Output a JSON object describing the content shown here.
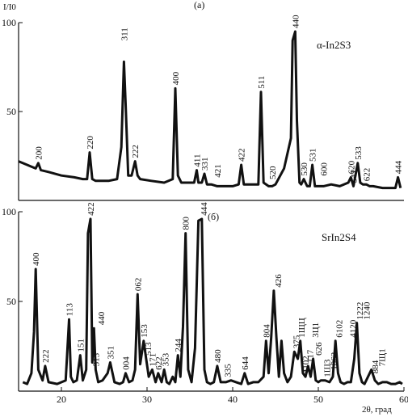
{
  "figure": {
    "y_axis_label": "I/I0",
    "x_axis_label": "2θ, град"
  },
  "chart_data": [
    {
      "type": "line",
      "panel_label": "(a)",
      "compound": "α-In2S3",
      "xlim": [
        15,
        60
      ],
      "ylim": [
        0,
        100
      ],
      "y_ticks": [
        50,
        100
      ],
      "series": [
        {
          "x": [
            15.0,
            16.0,
            16.5,
            17.0,
            17.3,
            17.6,
            18.5,
            20.0,
            21.5,
            22.5,
            23.0,
            23.3,
            23.6,
            24.0,
            25.5,
            26.5,
            27.0,
            27.3,
            27.5,
            27.8,
            28.2,
            28.6,
            28.9,
            29.2,
            30.5,
            32.0,
            33.0,
            33.3,
            33.6,
            34.0,
            35.0,
            35.5,
            35.8,
            36.0,
            36.4,
            36.7,
            37.0,
            37.5,
            38.2,
            39.0,
            40.0,
            40.7,
            41.0,
            41.3,
            42.5,
            43.0,
            43.3,
            43.6,
            44.2,
            44.6,
            45.0,
            46.0,
            46.8,
            47.0,
            47.3,
            47.5,
            47.8,
            48.0,
            48.3,
            48.7,
            49.0,
            49.3,
            49.6,
            50.0,
            50.6,
            51.5,
            52.5,
            53.5,
            53.8,
            54.1,
            54.6,
            54.9,
            55.2,
            55.6,
            56.0,
            56.4,
            57.5,
            58.5,
            59.0,
            59.3,
            59.6
          ],
          "y": [
            22,
            20,
            19,
            18,
            21,
            17,
            16,
            14,
            13,
            12,
            12,
            27,
            12,
            11,
            11,
            12,
            30,
            78,
            54,
            14,
            14,
            22,
            14,
            12,
            11,
            10,
            12,
            63,
            14,
            10,
            10,
            10,
            17,
            10,
            10,
            15,
            9,
            9,
            8,
            8,
            8,
            9,
            20,
            9,
            9,
            9,
            61,
            10,
            8,
            8,
            9,
            18,
            35,
            90,
            95,
            45,
            10,
            9,
            12,
            8,
            8,
            20,
            8,
            8,
            8,
            9,
            8,
            10,
            13,
            8,
            21,
            10,
            9,
            9,
            8,
            8,
            7,
            7,
            7,
            13,
            7
          ]
        }
      ],
      "annotations": [
        {
          "x": 17.3,
          "y": 21,
          "text": "200"
        },
        {
          "x": 23.3,
          "y": 27,
          "text": "220"
        },
        {
          "x": 27.3,
          "y": 88,
          "text": "311"
        },
        {
          "x": 28.6,
          "y": 22,
          "text": "222"
        },
        {
          "x": 33.3,
          "y": 63,
          "text": "400"
        },
        {
          "x": 35.8,
          "y": 17,
          "text": "411"
        },
        {
          "x": 36.7,
          "y": 15,
          "text": "331"
        },
        {
          "x": 38.2,
          "y": 11,
          "text": "421"
        },
        {
          "x": 41.0,
          "y": 20,
          "text": "422"
        },
        {
          "x": 43.3,
          "y": 61,
          "text": "511"
        },
        {
          "x": 44.6,
          "y": 10,
          "text": "520"
        },
        {
          "x": 47.3,
          "y": 95,
          "text": "440"
        },
        {
          "x": 48.3,
          "y": 12,
          "text": "530"
        },
        {
          "x": 49.3,
          "y": 20,
          "text": "531"
        },
        {
          "x": 50.6,
          "y": 12,
          "text": "600"
        },
        {
          "x": 53.8,
          "y": 13,
          "text": "620"
        },
        {
          "x": 54.1,
          "y": 8,
          "text": "541"
        },
        {
          "x": 54.6,
          "y": 21,
          "text": "533"
        },
        {
          "x": 55.6,
          "y": 9,
          "text": "622"
        },
        {
          "x": 59.3,
          "y": 13,
          "text": "444"
        }
      ]
    },
    {
      "type": "line",
      "panel_label": "(б)",
      "compound": "SrIn2S4",
      "xlim": [
        15,
        60
      ],
      "ylim": [
        0,
        100
      ],
      "x_ticks": [
        20,
        30,
        40,
        50,
        60
      ],
      "y_ticks": [
        50,
        100
      ],
      "series": [
        {
          "x": [
            15.5,
            16.0,
            16.5,
            16.8,
            17.0,
            17.3,
            17.8,
            18.1,
            18.5,
            19.5,
            20.5,
            20.9,
            21.1,
            21.4,
            21.8,
            22.2,
            22.5,
            22.9,
            23.1,
            23.4,
            23.6,
            23.8,
            24.0,
            24.3,
            24.8,
            25.4,
            25.7,
            26.2,
            26.8,
            27.2,
            27.5,
            27.9,
            28.3,
            28.6,
            28.9,
            29.2,
            29.6,
            29.9,
            30.2,
            30.6,
            31.0,
            31.3,
            31.7,
            32.0,
            32.3,
            32.6,
            33.0,
            33.3,
            33.6,
            33.9,
            34.2,
            34.5,
            34.8,
            35.2,
            35.6,
            36.0,
            36.4,
            36.7,
            37.0,
            37.4,
            37.8,
            38.2,
            38.6,
            39.2,
            39.8,
            40.4,
            41.0,
            41.4,
            41.8,
            42.4,
            43.0,
            43.6,
            43.9,
            44.2,
            44.5,
            44.8,
            45.1,
            45.4,
            45.7,
            46.0,
            46.4,
            46.8,
            47.2,
            47.6,
            47.9,
            48.2,
            48.5,
            48.8,
            49.1,
            49.4,
            49.7,
            50.0,
            50.3,
            50.8,
            51.3,
            51.7,
            52.0,
            52.3,
            52.6,
            53.0,
            53.4,
            53.8,
            54.2,
            54.5,
            54.8,
            55.1,
            55.4,
            55.8,
            56.2,
            56.6,
            57.0,
            57.5,
            58.0,
            58.5,
            59.0,
            59.5,
            59.8
          ],
          "y": [
            5,
            4,
            10,
            33,
            68,
            12,
            6,
            14,
            5,
            4,
            6,
            40,
            8,
            5,
            6,
            20,
            6,
            12,
            88,
            96,
            16,
            35,
            12,
            5,
            6,
            10,
            16,
            5,
            4,
            5,
            10,
            5,
            6,
            12,
            54,
            15,
            28,
            18,
            8,
            12,
            5,
            10,
            5,
            12,
            5,
            4,
            8,
            5,
            20,
            8,
            36,
            88,
            12,
            5,
            24,
            95,
            96,
            12,
            5,
            4,
            5,
            14,
            5,
            5,
            6,
            5,
            4,
            10,
            4,
            5,
            5,
            8,
            28,
            10,
            30,
            56,
            30,
            8,
            28,
            10,
            5,
            8,
            22,
            18,
            28,
            10,
            8,
            14,
            8,
            18,
            6,
            5,
            6,
            6,
            5,
            8,
            28,
            10,
            5,
            4,
            5,
            5,
            18,
            38,
            10,
            5,
            4,
            8,
            12,
            6,
            4,
            5,
            5,
            4,
            4,
            5,
            4
          ]
        }
      ],
      "annotations": [
        {
          "x": 17.0,
          "y": 68,
          "text": "400"
        },
        {
          "x": 18.1,
          "y": 14,
          "text": "222"
        },
        {
          "x": 20.9,
          "y": 40,
          "text": "113"
        },
        {
          "x": 22.2,
          "y": 20,
          "text": "151"
        },
        {
          "x": 23.4,
          "y": 96,
          "text": "422"
        },
        {
          "x": 24.0,
          "y": 12,
          "text": "313"
        },
        {
          "x": 24.6,
          "y": 35,
          "text": "440"
        },
        {
          "x": 25.7,
          "y": 16,
          "text": "351"
        },
        {
          "x": 27.5,
          "y": 10,
          "text": "004"
        },
        {
          "x": 28.9,
          "y": 54,
          "text": "062"
        },
        {
          "x": 29.6,
          "y": 28,
          "text": "153"
        },
        {
          "x": 30.1,
          "y": 18,
          "text": "513"
        },
        {
          "x": 30.6,
          "y": 12,
          "text": "171"
        },
        {
          "x": 31.3,
          "y": 10,
          "text": "622"
        },
        {
          "x": 32.1,
          "y": 12,
          "text": "353"
        },
        {
          "x": 33.6,
          "y": 20,
          "text": "244"
        },
        {
          "x": 34.5,
          "y": 88,
          "text": "800"
        },
        {
          "x": 36.6,
          "y": 96,
          "text": "444"
        },
        {
          "x": 38.2,
          "y": 14,
          "text": "480"
        },
        {
          "x": 39.4,
          "y": 6,
          "text": "335"
        },
        {
          "x": 41.4,
          "y": 10,
          "text": "644"
        },
        {
          "x": 43.9,
          "y": 28,
          "text": "804"
        },
        {
          "x": 45.3,
          "y": 56,
          "text": "426"
        },
        {
          "x": 47.4,
          "y": 22,
          "text": "375"
        },
        {
          "x": 48.0,
          "y": 28,
          "text": "1ЩЦ"
        },
        {
          "x": 48.5,
          "y": 8,
          "text": "4102"
        },
        {
          "x": 49.0,
          "y": 14,
          "text": "117"
        },
        {
          "x": 49.6,
          "y": 28,
          "text": "3Ц1"
        },
        {
          "x": 50.0,
          "y": 18,
          "text": "626"
        },
        {
          "x": 51.0,
          "y": 6,
          "text": "1Щ3"
        },
        {
          "x": 51.8,
          "y": 10,
          "text": "1062"
        },
        {
          "x": 52.4,
          "y": 28,
          "text": "6102"
        },
        {
          "x": 54.0,
          "y": 28,
          "text": "4120"
        },
        {
          "x": 54.8,
          "y": 38,
          "text": "1222"
        },
        {
          "x": 55.6,
          "y": 38,
          "text": "1240"
        },
        {
          "x": 56.6,
          "y": 8,
          "text": "884"
        },
        {
          "x": 57.4,
          "y": 12,
          "text": "7Щ1"
        }
      ]
    }
  ]
}
